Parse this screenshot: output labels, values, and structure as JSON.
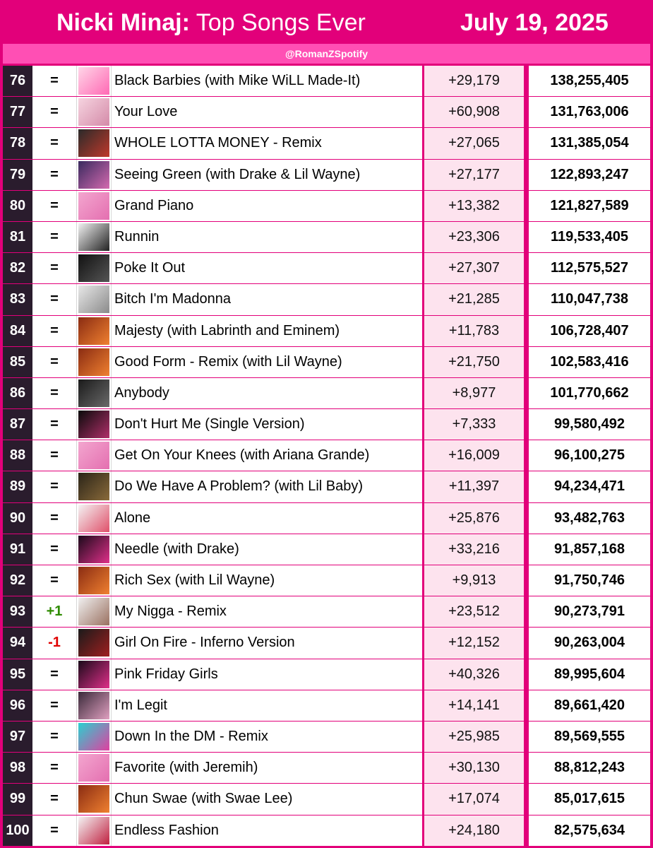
{
  "header": {
    "artist": "Nicki Minaj:",
    "title_rest": "Top Songs Ever",
    "date": "July 19, 2025",
    "handle": "@RomanZSpotify",
    "bg_color": "#e2007a"
  },
  "rows": [
    {
      "rank": "76",
      "change": "=",
      "song": "Black Barbies (with Mike WiLL Made-It)",
      "daily": "+29,179",
      "total": "138,255,405",
      "art_colors": [
        "#ffd6e8",
        "#ff69b4"
      ]
    },
    {
      "rank": "77",
      "change": "=",
      "song": "Your Love",
      "daily": "+60,908",
      "total": "131,763,006",
      "art_colors": [
        "#f6d4e0",
        "#d48aa8"
      ]
    },
    {
      "rank": "78",
      "change": "=",
      "song": "WHOLE LOTTA MONEY - Remix",
      "daily": "+27,065",
      "total": "131,385,054",
      "art_colors": [
        "#2a2a2a",
        "#c0392b"
      ]
    },
    {
      "rank": "79",
      "change": "=",
      "song": "Seeing Green (with Drake & Lil Wayne)",
      "daily": "+27,177",
      "total": "122,893,247",
      "art_colors": [
        "#3a2a5e",
        "#d46ab0"
      ]
    },
    {
      "rank": "80",
      "change": "=",
      "song": "Grand Piano",
      "daily": "+13,382",
      "total": "121,827,589",
      "art_colors": [
        "#f3a6cf",
        "#e46fb0"
      ]
    },
    {
      "rank": "81",
      "change": "=",
      "song": "Runnin",
      "daily": "+23,306",
      "total": "119,533,405",
      "art_colors": [
        "#f2f2f2",
        "#222222"
      ]
    },
    {
      "rank": "82",
      "change": "=",
      "song": "Poke It Out",
      "daily": "+27,307",
      "total": "112,575,527",
      "art_colors": [
        "#111111",
        "#555555"
      ]
    },
    {
      "rank": "83",
      "change": "=",
      "song": "Bitch I'm Madonna",
      "daily": "+21,285",
      "total": "110,047,738",
      "art_colors": [
        "#e8e8e8",
        "#8a8a8a"
      ]
    },
    {
      "rank": "84",
      "change": "=",
      "song": "Majesty (with Labrinth and Eminem)",
      "daily": "+11,783",
      "total": "106,728,407",
      "art_colors": [
        "#8a2c12",
        "#f08030"
      ]
    },
    {
      "rank": "85",
      "change": "=",
      "song": "Good Form - Remix (with Lil Wayne)",
      "daily": "+21,750",
      "total": "102,583,416",
      "art_colors": [
        "#8a2c12",
        "#f08030"
      ]
    },
    {
      "rank": "86",
      "change": "=",
      "song": "Anybody",
      "daily": "+8,977",
      "total": "101,770,662",
      "art_colors": [
        "#1a1a1a",
        "#6a6a6a"
      ]
    },
    {
      "rank": "87",
      "change": "=",
      "song": "Don't Hurt Me (Single Version)",
      "daily": "+7,333",
      "total": "99,580,492",
      "art_colors": [
        "#0a0a0a",
        "#b0306a"
      ]
    },
    {
      "rank": "88",
      "change": "=",
      "song": "Get On Your Knees (with Ariana Grande)",
      "daily": "+16,009",
      "total": "96,100,275",
      "art_colors": [
        "#f3a6cf",
        "#e46fb0"
      ]
    },
    {
      "rank": "89",
      "change": "=",
      "song": "Do We Have A Problem? (with Lil Baby)",
      "daily": "+11,397",
      "total": "94,234,471",
      "art_colors": [
        "#2a2418",
        "#8a6a3a"
      ]
    },
    {
      "rank": "90",
      "change": "=",
      "song": "Alone",
      "daily": "+25,876",
      "total": "93,482,763",
      "art_colors": [
        "#f4f4f4",
        "#e0506a"
      ]
    },
    {
      "rank": "91",
      "change": "=",
      "song": "Needle (with Drake)",
      "daily": "+33,216",
      "total": "91,857,168",
      "art_colors": [
        "#1a0a1a",
        "#e0308a"
      ]
    },
    {
      "rank": "92",
      "change": "=",
      "song": "Rich Sex (with Lil Wayne)",
      "daily": "+9,913",
      "total": "91,750,746",
      "art_colors": [
        "#8a2c12",
        "#f08030"
      ]
    },
    {
      "rank": "93",
      "change": "+1",
      "song": "My Nigga - Remix",
      "daily": "+23,512",
      "total": "90,273,791",
      "art_colors": [
        "#f0f0f0",
        "#9a7060"
      ]
    },
    {
      "rank": "94",
      "change": "-1",
      "song": "Girl On Fire - Inferno Version",
      "daily": "+12,152",
      "total": "90,263,004",
      "art_colors": [
        "#1a1a1a",
        "#a02020"
      ]
    },
    {
      "rank": "95",
      "change": "=",
      "song": "Pink Friday Girls",
      "daily": "+40,326",
      "total": "89,995,604",
      "art_colors": [
        "#1a0a1a",
        "#e0308a"
      ]
    },
    {
      "rank": "96",
      "change": "=",
      "song": "I'm Legit",
      "daily": "+14,141",
      "total": "89,661,420",
      "art_colors": [
        "#3a2a3a",
        "#e0a0c0"
      ]
    },
    {
      "rank": "97",
      "change": "=",
      "song": "Down In the DM - Remix",
      "daily": "+25,985",
      "total": "89,569,555",
      "art_colors": [
        "#2ad0d0",
        "#e040a0"
      ]
    },
    {
      "rank": "98",
      "change": "=",
      "song": "Favorite (with Jeremih)",
      "daily": "+30,130",
      "total": "88,812,243",
      "art_colors": [
        "#f3a6cf",
        "#e46fb0"
      ]
    },
    {
      "rank": "99",
      "change": "=",
      "song": "Chun Swae (with Swae Lee)",
      "daily": "+17,074",
      "total": "85,017,615",
      "art_colors": [
        "#8a2c12",
        "#f08030"
      ]
    },
    {
      "rank": "100",
      "change": "=",
      "song": "Endless Fashion",
      "daily": "+24,180",
      "total": "82,575,634",
      "art_colors": [
        "#f4f4f4",
        "#c02040"
      ]
    }
  ]
}
